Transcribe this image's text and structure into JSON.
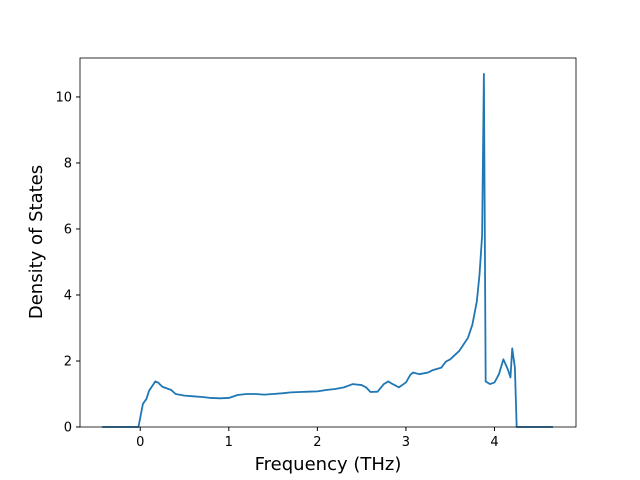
{
  "chart_data": {
    "type": "line",
    "x_label": "Frequency (THz)",
    "y_label": "Density of States",
    "x": [
      -0.43,
      -0.02,
      0.03,
      0.07,
      0.1,
      0.17,
      0.2,
      0.25,
      0.35,
      0.4,
      0.5,
      0.6,
      0.7,
      0.8,
      0.9,
      1.0,
      1.1,
      1.2,
      1.3,
      1.4,
      1.5,
      1.6,
      1.7,
      1.8,
      1.9,
      2.0,
      2.1,
      2.2,
      2.3,
      2.4,
      2.5,
      2.55,
      2.6,
      2.68,
      2.75,
      2.8,
      2.85,
      2.92,
      3.0,
      3.05,
      3.08,
      3.15,
      3.25,
      3.3,
      3.4,
      3.45,
      3.5,
      3.6,
      3.7,
      3.75,
      3.8,
      3.83,
      3.86,
      3.88,
      3.9,
      3.95,
      4.0,
      4.05,
      4.1,
      4.15,
      4.18,
      4.2,
      4.23,
      4.25,
      4.66
    ],
    "series": [
      {
        "color": "#1f77b4",
        "values": [
          0,
          0,
          0.7,
          0.85,
          1.1,
          1.38,
          1.35,
          1.22,
          1.12,
          1.0,
          0.95,
          0.93,
          0.91,
          0.88,
          0.87,
          0.88,
          0.97,
          1.0,
          1.0,
          0.98,
          1.0,
          1.02,
          1.05,
          1.06,
          1.07,
          1.08,
          1.12,
          1.15,
          1.2,
          1.3,
          1.27,
          1.2,
          1.06,
          1.07,
          1.3,
          1.38,
          1.3,
          1.2,
          1.35,
          1.58,
          1.65,
          1.6,
          1.65,
          1.72,
          1.8,
          1.98,
          2.05,
          2.3,
          2.7,
          3.1,
          3.8,
          4.6,
          5.8,
          10.7,
          1.38,
          1.3,
          1.35,
          1.6,
          2.05,
          1.75,
          1.5,
          2.38,
          1.8,
          0,
          0
        ]
      }
    ],
    "xlim": [
      -0.68,
      4.92
    ],
    "ylim": [
      0,
      11.18
    ],
    "xticks": [
      0,
      1,
      2,
      3,
      4
    ],
    "yticks": [
      0,
      2,
      4,
      6,
      8,
      10
    ]
  }
}
